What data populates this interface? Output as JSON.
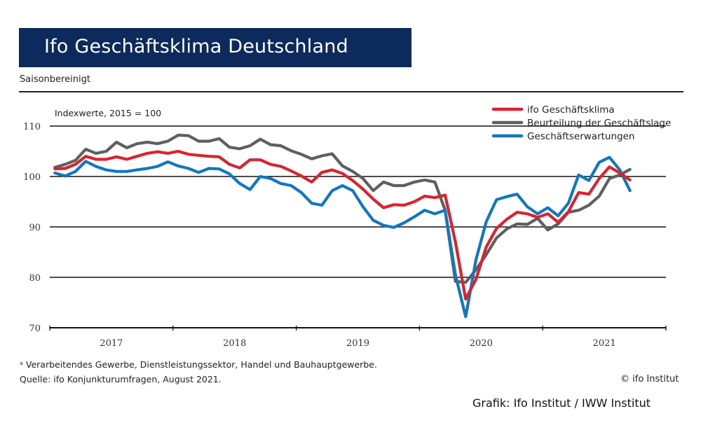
{
  "header": {
    "title": "Ifo Geschäftsklima Deutschland",
    "subtitle": "Saisonbereinigt"
  },
  "footer": {
    "footnote": "ᵃ Verarbeitendes Gewerbe, Dienstleistungssektor, Handel und Bauhauptgewerbe.",
    "source": "Quelle: ifo Konjunkturumfragen, August 2021.",
    "copyright": "© ifo Institut",
    "graphic_credit": "Grafik: Ifo Institut / IWW Institut"
  },
  "chart_data": {
    "type": "line",
    "title": "Ifo Geschäftsklima Deutschland",
    "subtitle": "Saisonbereinigt",
    "annotation": "Indexwerte, 2015 = 100",
    "xlabel": "",
    "ylabel": "",
    "ylim": [
      70,
      110
    ],
    "yticks": [
      70,
      80,
      90,
      100,
      110
    ],
    "year_labels": [
      "2017",
      "2018",
      "2019",
      "2020",
      "2021"
    ],
    "x_start": "2017-01",
    "x_end": "2021-08",
    "grid": "horizontal",
    "legend_position": "top-right",
    "series": [
      {
        "name": "ifo Geschäftsklima",
        "color": "#d7242f",
        "values": [
          101.5,
          101.6,
          102.4,
          104.0,
          103.4,
          103.4,
          103.9,
          103.4,
          104.0,
          104.6,
          104.9,
          104.6,
          105.0,
          104.4,
          104.2,
          104.0,
          103.9,
          102.4,
          101.7,
          103.3,
          103.3,
          102.4,
          102.0,
          101.1,
          100.1,
          98.9,
          100.8,
          101.3,
          100.6,
          99.2,
          97.5,
          95.5,
          93.8,
          94.4,
          94.3,
          95.0,
          96.1,
          95.8,
          96.3,
          87.0,
          75.7,
          79.6,
          86.0,
          89.7,
          91.5,
          92.9,
          92.6,
          91.9,
          92.6,
          90.9,
          93.0,
          96.8,
          96.5,
          99.6,
          101.9,
          100.7,
          99.3
        ]
      },
      {
        "name": "Beurteilung der Geschäftslage",
        "color": "#5f5f5f",
        "values": [
          101.8,
          102.4,
          103.2,
          105.4,
          104.6,
          105.0,
          106.8,
          105.7,
          106.5,
          106.8,
          106.5,
          107.0,
          108.2,
          108.1,
          107.0,
          107.0,
          107.5,
          105.8,
          105.5,
          106.1,
          107.4,
          106.3,
          106.1,
          105.1,
          104.4,
          103.5,
          104.1,
          104.5,
          102.1,
          101.0,
          99.6,
          97.2,
          98.9,
          98.2,
          98.2,
          98.9,
          99.3,
          98.9,
          93.3,
          79.2,
          79.0,
          81.5,
          84.5,
          87.8,
          89.6,
          90.6,
          90.5,
          91.7,
          89.4,
          90.6,
          92.9,
          93.3,
          94.3,
          96.1,
          99.6,
          100.3,
          101.4
        ]
      },
      {
        "name": "Geschäftserwartungen",
        "color": "#1377c0",
        "values": [
          100.7,
          100.1,
          101.0,
          103.0,
          102.0,
          101.3,
          101.0,
          101.0,
          101.3,
          101.6,
          102.0,
          102.9,
          102.1,
          101.6,
          100.8,
          101.6,
          101.5,
          100.5,
          98.6,
          97.4,
          100.0,
          99.6,
          98.6,
          98.2,
          96.8,
          94.7,
          94.3,
          97.2,
          98.2,
          97.2,
          94.0,
          91.3,
          90.3,
          89.9,
          90.8,
          92.0,
          93.3,
          92.6,
          93.3,
          80.5,
          72.2,
          83.5,
          91.0,
          95.4,
          96.0,
          96.5,
          94.0,
          92.6,
          93.8,
          92.2,
          94.7,
          100.3,
          99.2,
          102.8,
          103.8,
          101.3,
          97.2
        ]
      }
    ]
  }
}
